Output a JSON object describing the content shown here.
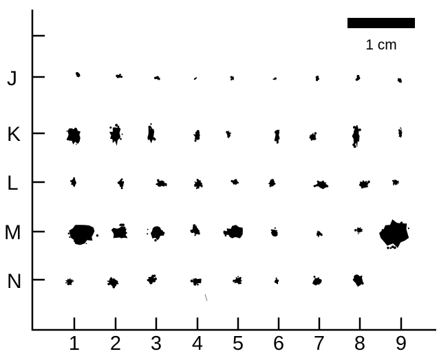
{
  "grid": {
    "rows": [
      "J",
      "K",
      "L",
      "M",
      "N"
    ],
    "columns": [
      "1",
      "2",
      "3",
      "4",
      "5",
      "6",
      "7",
      "8",
      "9"
    ]
  },
  "scale_bar": {
    "label": "1 cm"
  },
  "colors": {
    "ink": "#000000",
    "background": "#ffffff"
  }
}
